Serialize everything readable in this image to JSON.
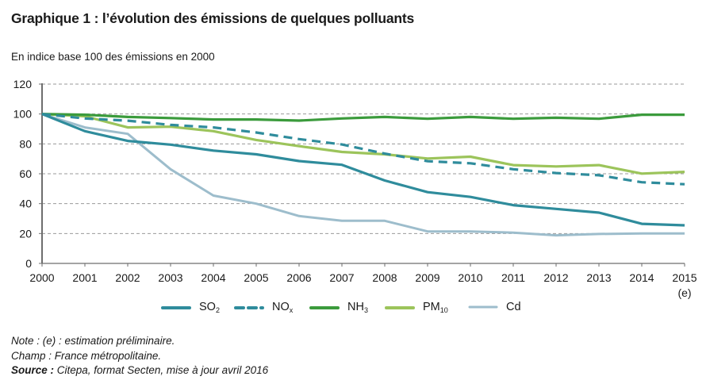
{
  "header": {
    "title": "Graphique 1 : l’évolution des émissions de quelques polluants",
    "subtitle": "En indice base 100 des émissions en 2000"
  },
  "chart_data": {
    "type": "line",
    "title": "Graphique 1 : l’évolution des émissions de quelques polluants",
    "subtitle": "En indice base 100 des émissions en 2000",
    "xlabel": "",
    "ylabel": "En indice base 100 des émissions en 2000",
    "x": [
      "2000",
      "2001",
      "2002",
      "2003",
      "2004",
      "2005",
      "2006",
      "2007",
      "2008",
      "2009",
      "2010",
      "2011",
      "2012",
      "2013",
      "2014",
      "2015"
    ],
    "x_annotation": {
      "category": "2015",
      "text": "(e)"
    },
    "ylim": [
      0,
      120
    ],
    "yticks": [
      0,
      20,
      40,
      60,
      80,
      100,
      120
    ],
    "grid": "horizontal dashed",
    "legend_position": "bottom",
    "series": [
      {
        "name": "SO2",
        "label_main": "SO",
        "label_sub": "2",
        "color": "#2f8c9c",
        "dash": "solid",
        "values": [
          100,
          88.5,
          82,
          79.5,
          75.5,
          73,
          68.5,
          66,
          55.5,
          47.7,
          44.5,
          39,
          36.5,
          34,
          26.5,
          25.5
        ]
      },
      {
        "name": "NOx",
        "label_main": "NO",
        "label_sub": "x",
        "color": "#2f8c9c",
        "dash": "dashed",
        "values": [
          100,
          97,
          95.5,
          92.7,
          91,
          87.6,
          83.2,
          79.6,
          73.5,
          68.4,
          67,
          63,
          60.5,
          59,
          54.3,
          53
        ]
      },
      {
        "name": "NH3",
        "label_main": "NH",
        "label_sub": "3",
        "color": "#3b9b3c",
        "dash": "solid",
        "values": [
          100,
          99.5,
          98,
          97.3,
          96.3,
          96.3,
          95.6,
          97,
          98,
          96.8,
          98,
          96.8,
          97.5,
          96.8,
          99.5,
          99.5
        ]
      },
      {
        "name": "PM10",
        "label_main": "PM",
        "label_sub": "10",
        "color": "#9cc45b",
        "dash": "solid",
        "values": [
          100,
          98.5,
          91,
          91.5,
          88.5,
          82.6,
          78.5,
          74.6,
          73,
          70.2,
          71.4,
          65.8,
          64.9,
          65.8,
          60.1,
          61.3
        ]
      },
      {
        "name": "Cd",
        "label_main": "Cd",
        "label_sub": "",
        "color": "#9dbdcc",
        "dash": "solid",
        "values": [
          100,
          91,
          86.7,
          63,
          45.4,
          40,
          31.7,
          28.5,
          28.5,
          21.4,
          21.4,
          20.6,
          18.8,
          19.7,
          20,
          20
        ]
      }
    ]
  },
  "footer": {
    "note": "Note : (e) : estimation préliminaire.",
    "champ": "Champ : France métropolitaine.",
    "source_label": "Source :",
    "source_text": " Citepa, format Secten, mise à jour avril 2016"
  }
}
